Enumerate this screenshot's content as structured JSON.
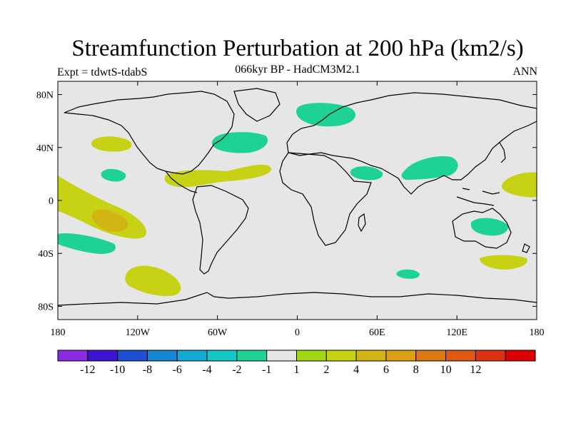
{
  "header": {
    "title": "Streamfunction Perturbation at 200 hPa (km2/s)",
    "subtitle": "066kyr BP - HadCM3M2.1",
    "left_label": "Expt = tdwtS-tdabS",
    "right_label": "ANN"
  },
  "map": {
    "projection": "cylindrical equidistant",
    "background_color": "#e6e6e6",
    "lon_ticks": [
      "180",
      "120W",
      "60W",
      "0",
      "60E",
      "120E",
      "180"
    ],
    "lat_ticks": [
      "80N",
      "40N",
      "0",
      "40S",
      "80S"
    ]
  },
  "colorbar": {
    "colors": [
      "#8a2be2",
      "#3c14d2",
      "#1e50d2",
      "#1486d2",
      "#14aad2",
      "#14c8c8",
      "#1ed296",
      "#e6e6e6",
      "#a0d714",
      "#c8d214",
      "#d2b414",
      "#dca014",
      "#dc7814",
      "#dc5a14",
      "#dc3214",
      "#dc0000"
    ],
    "labels": [
      "-12",
      "-10",
      "-8",
      "-6",
      "-4",
      "-2",
      "-1",
      "1",
      "2",
      "4",
      "6",
      "8",
      "10",
      "12"
    ]
  },
  "anomalies": [
    {
      "name": "north-atlantic-high",
      "category": "2"
    },
    {
      "name": "north-pacific-high",
      "category": "2"
    },
    {
      "name": "tropical-pacific-high",
      "category": "2"
    },
    {
      "name": "southeast-pacific-high",
      "category": "2"
    },
    {
      "name": "south-pacific-core",
      "category": "4"
    },
    {
      "name": "caribbean-high",
      "category": "2"
    },
    {
      "name": "west-pacific-high",
      "category": "2"
    },
    {
      "name": "australia-south-high",
      "category": "2"
    },
    {
      "name": "scandinavia-low",
      "category": "-1"
    },
    {
      "name": "north-atlantic-low",
      "category": "-1"
    },
    {
      "name": "south-asia-low",
      "category": "-1"
    },
    {
      "name": "arabia-low",
      "category": "-1"
    },
    {
      "name": "australia-low",
      "category": "-1"
    },
    {
      "name": "south-pacific-low",
      "category": "-1"
    },
    {
      "name": "east-pacific-low",
      "category": "-1"
    },
    {
      "name": "indian-ocean-low",
      "category": "-1"
    }
  ]
}
